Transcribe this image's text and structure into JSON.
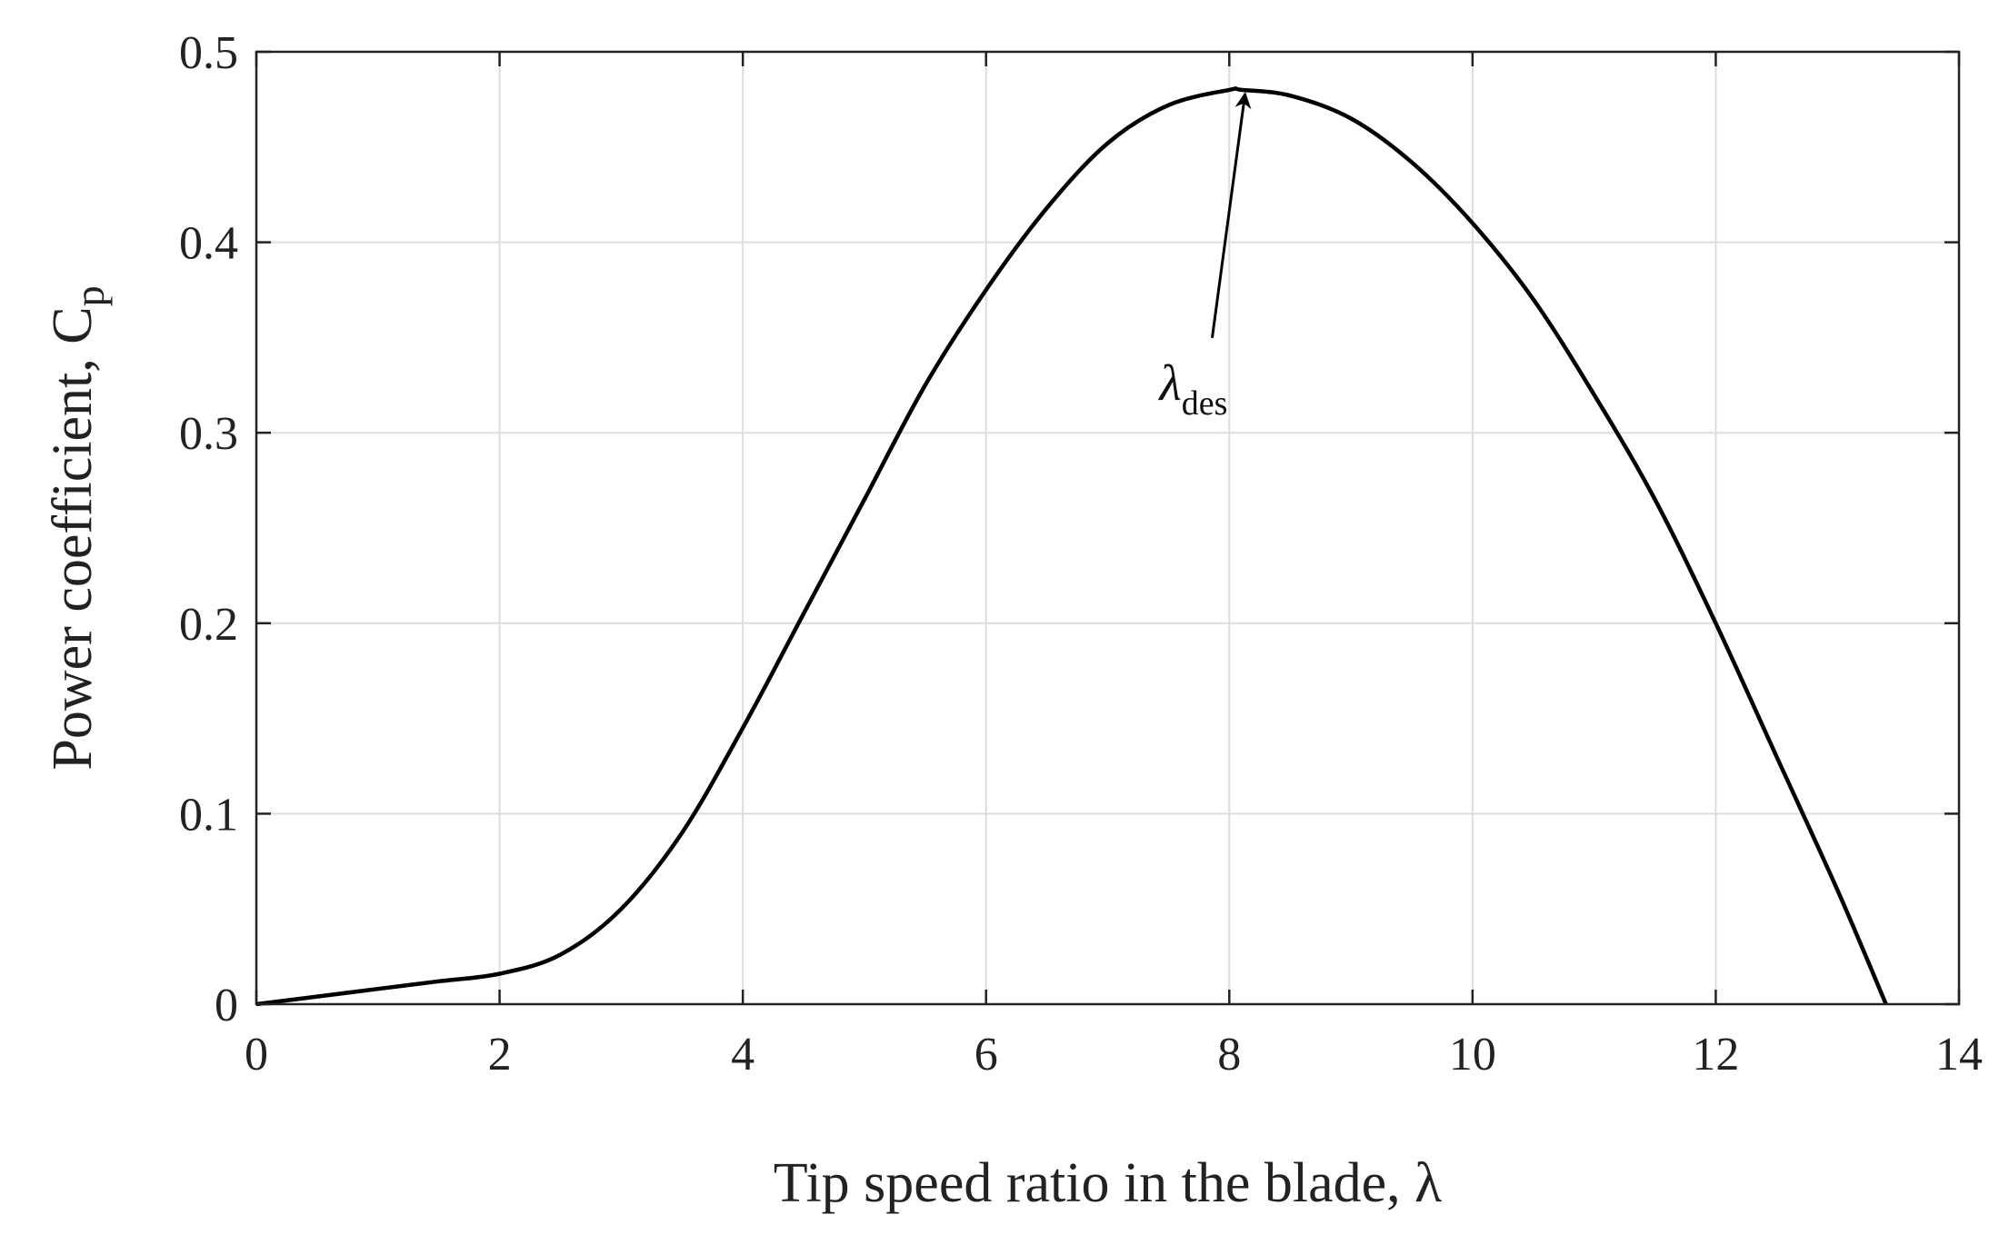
{
  "chart_data": {
    "type": "line",
    "title": "",
    "xlabel": "Tip speed ratio in the blade, λ",
    "ylabel_main": "Power coefficient, C",
    "ylabel_sub": "p",
    "xlim": [
      0,
      14
    ],
    "ylim": [
      0,
      0.5
    ],
    "xticks": [
      0,
      2,
      4,
      6,
      8,
      10,
      12,
      14
    ],
    "yticks": [
      0,
      0.1,
      0.2,
      0.3,
      0.4,
      0.5
    ],
    "xtick_labels": [
      "0",
      "2",
      "4",
      "6",
      "8",
      "10",
      "12",
      "14"
    ],
    "ytick_labels": [
      "0",
      "0.1",
      "0.2",
      "0.3",
      "0.4",
      "0.5"
    ],
    "grid": true,
    "line_color": "#000000",
    "grid_color": "#dddddd",
    "series": [
      {
        "x": [
          0,
          0.5,
          1,
          1.5,
          2,
          2.5,
          3,
          3.5,
          4,
          4.5,
          5,
          5.5,
          6,
          6.5,
          7,
          7.5,
          8,
          8.1,
          8.5,
          9,
          9.5,
          10,
          10.5,
          11,
          11.5,
          12,
          12.5,
          13,
          13.4
        ],
        "y": [
          0,
          0.004,
          0.008,
          0.012,
          0.016,
          0.026,
          0.05,
          0.09,
          0.145,
          0.205,
          0.265,
          0.325,
          0.375,
          0.418,
          0.452,
          0.472,
          0.48,
          0.48,
          0.477,
          0.465,
          0.442,
          0.41,
          0.37,
          0.32,
          0.265,
          0.2,
          0.13,
          0.06,
          0
        ]
      }
    ],
    "annotation": {
      "symbol": "λ",
      "subscript": "des",
      "target_x": 8.1,
      "target_y": 0.48,
      "label_x": 7.65,
      "label_y": 0.325
    }
  }
}
